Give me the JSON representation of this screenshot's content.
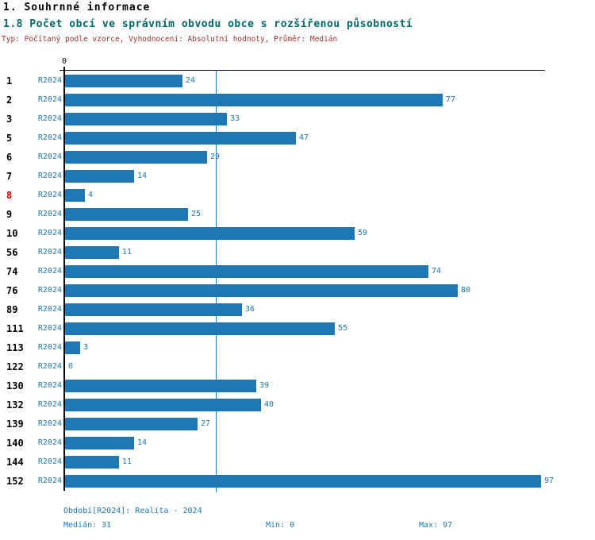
{
  "header": {
    "section_title": "1. Souhrnné informace",
    "chart_title": "1.8 Počet obcí ve správním obvodu obce s rozšířenou působností",
    "subtitle": "Typ: Počítaný podle vzorce, Vyhodnocení: Absolutní hodnoty, Průměr: Medián"
  },
  "colors": {
    "bar": "#1f77b4",
    "accent_text": "#1f77b4",
    "highlighted_category": "#e00000",
    "chart_title": "#006666",
    "subtitle": "#993333",
    "axis": "#000000"
  },
  "chart_data": {
    "type": "bar",
    "orientation": "horizontal",
    "title": "1.8 Počet obcí ve správním obvodu obce s rozšířenou působností",
    "axis_origin_label": "0",
    "series_label": "R2024",
    "categories": [
      "1",
      "2",
      "3",
      "5",
      "6",
      "7",
      "8",
      "9",
      "10",
      "56",
      "74",
      "76",
      "89",
      "111",
      "113",
      "122",
      "130",
      "132",
      "139",
      "140",
      "144",
      "152"
    ],
    "values": [
      24,
      77,
      33,
      47,
      29,
      14,
      4,
      25,
      59,
      11,
      74,
      80,
      36,
      55,
      3,
      0,
      39,
      40,
      27,
      14,
      11,
      97
    ],
    "highlighted_category": "8",
    "median": 31,
    "min": 0,
    "max": 97,
    "xlim": [
      0,
      97
    ],
    "grid": false,
    "median_line": true
  },
  "footer": {
    "period_label": "Období[R2024]: Realita - 2024",
    "median_label": "Medián: 31",
    "min_label": "Min: 0",
    "max_label": "Max: 97"
  }
}
